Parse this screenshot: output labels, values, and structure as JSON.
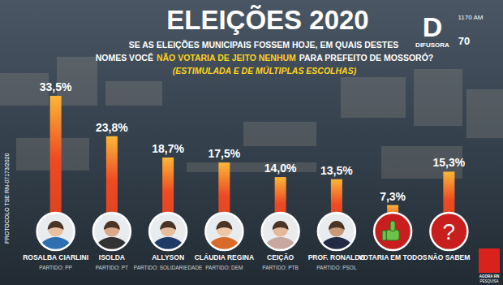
{
  "chart_data": {
    "type": "bar",
    "title": "ELEIÇÕES 2020",
    "subtitle": [
      "SE AS ELEIÇÕES MUNICIPAIS FOSSEM HOJE, EM QUAIS DESTES",
      "NOMES VOCÊ",
      "NÃO VOTARIA DE JEITO NENHUM",
      "PARA PREFEITO DE MOSSORÓ?"
    ],
    "note": "(ESTIMULADA E DE MÚLTIPLAS ESCOLHAS)",
    "categories": [
      "ROSALBA CIARLINI",
      "ISOLDA",
      "ALLYSON",
      "CLÁUDIA REGINA",
      "CEIÇÃO",
      "PROF. RONALDO",
      "VOTARIA EM TODOS",
      "NÃO SABEM"
    ],
    "parties": [
      "PARTIDO: PP",
      "PARTIDO: PT",
      "PARTIDO: SOLIDARIEDADE",
      "PARTIDO: DEM",
      "PARTIDO: PTB",
      "PARTIDO: PSOL",
      null,
      null
    ],
    "values": [
      33.5,
      23.8,
      18.7,
      17.5,
      14.0,
      13.5,
      7.3,
      15.3
    ],
    "value_labels": [
      "33,5%",
      "23,8%",
      "18,7%",
      "17,5%",
      "14,0%",
      "13,5%",
      "7,3%",
      "15,3%"
    ],
    "color": "#ee4a23",
    "data_labels": true,
    "tick_labels": "x",
    "grid": false,
    "annotations": {
      "protocol": "PROTOCOLO TSE RN-07173/2020",
      "station_initial": "D",
      "station": "DIFUSORA",
      "frequency": "1170 AM",
      "anniversary": "70",
      "pollster": "AGORA RN",
      "pollster_tag": "PESQUISA",
      "question_mark": "?"
    }
  }
}
